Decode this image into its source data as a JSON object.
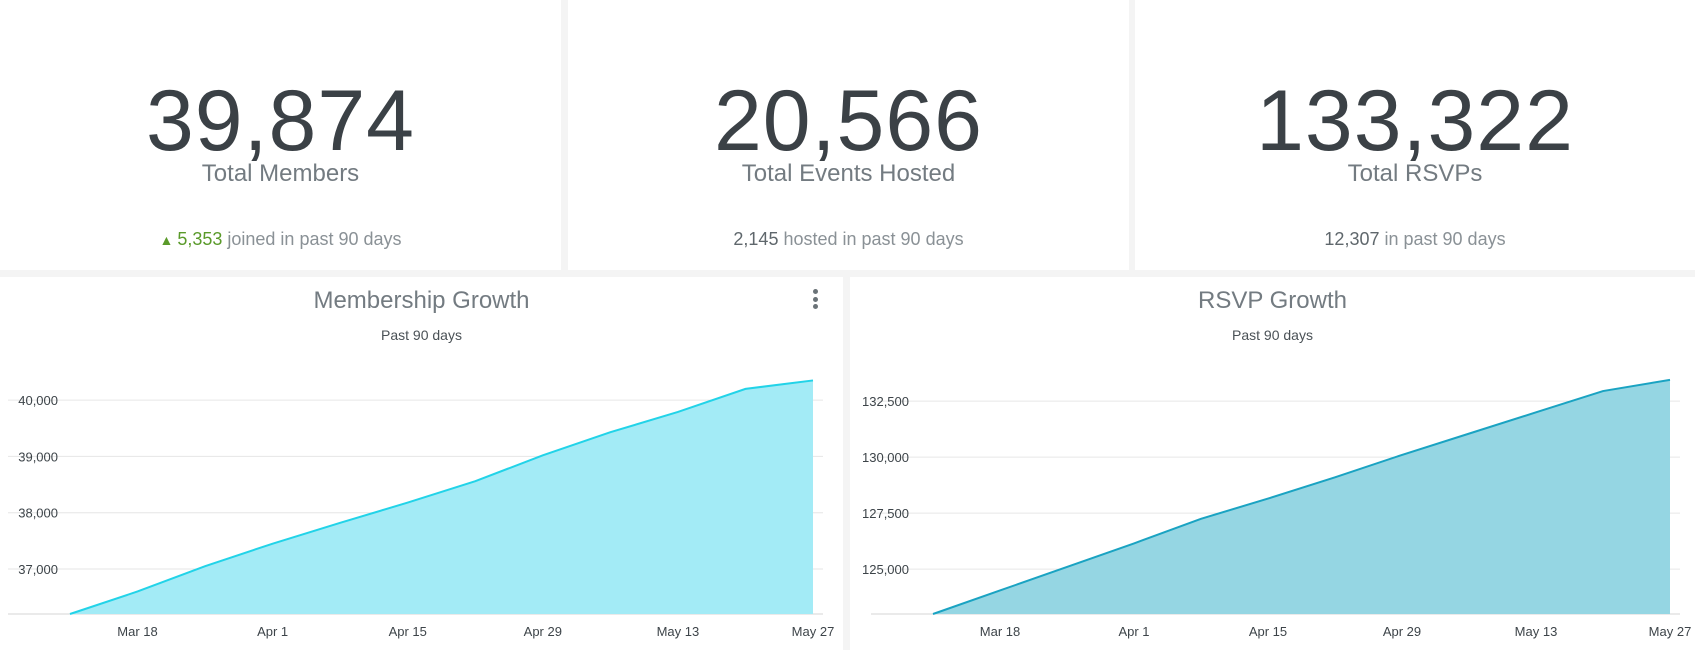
{
  "stats": [
    {
      "value": "39,874",
      "label": "Total Members",
      "delta": "5,353",
      "delta_text": "joined in past 90 days",
      "trend": "up"
    },
    {
      "value": "20,566",
      "label": "Total Events Hosted",
      "delta": "2,145",
      "delta_text": "hosted in past 90 days"
    },
    {
      "value": "133,322",
      "label": "Total RSVPs",
      "delta": "12,307",
      "delta_text": "in past 90 days"
    }
  ],
  "colors": {
    "membership_line": "#22d3e8",
    "membership_fill": "#a3ebf6",
    "rsvp_line": "#1aa3c2",
    "rsvp_fill": "#95d6e3",
    "grid": "#e6e6e6",
    "up_green": "#5a9a2a"
  },
  "chart_data": [
    {
      "type": "area",
      "title": "Membership Growth",
      "subtitle": "Past 90 days",
      "x": [
        "Mar 11",
        "Mar 18",
        "Mar 25",
        "Apr 1",
        "Apr 8",
        "Apr 15",
        "Apr 22",
        "Apr 29",
        "May 6",
        "May 13",
        "May 20",
        "May 27"
      ],
      "values": [
        36200,
        36600,
        37050,
        37450,
        37820,
        38180,
        38560,
        39020,
        39430,
        39790,
        40200,
        40350
      ],
      "xtick_labels": [
        "Mar 18",
        "Apr 1",
        "Apr 15",
        "Apr 29",
        "May 13",
        "May 27"
      ],
      "yticks": [
        37000,
        38000,
        39000,
        40000
      ],
      "ytick_labels": [
        "37,000",
        "38,000",
        "39,000",
        "40,000"
      ],
      "ylim": [
        36200,
        40500
      ],
      "has_menu": true
    },
    {
      "type": "area",
      "title": "RSVP Growth",
      "subtitle": "Past 90 days",
      "x": [
        "Mar 11",
        "Mar 18",
        "Mar 25",
        "Apr 1",
        "Apr 8",
        "Apr 15",
        "Apr 22",
        "Apr 29",
        "May 6",
        "May 13",
        "May 20",
        "May 27"
      ],
      "values": [
        123000,
        124050,
        125100,
        126150,
        127250,
        128150,
        129100,
        130100,
        131050,
        132000,
        132950,
        133450
      ],
      "xtick_labels": [
        "Mar 18",
        "Apr 1",
        "Apr 15",
        "Apr 29",
        "May 13",
        "May 27"
      ],
      "yticks": [
        125000,
        127500,
        130000,
        132500
      ],
      "ytick_labels": [
        "125,000",
        "127,500",
        "130,000",
        "132,500"
      ],
      "ylim": [
        123000,
        133800
      ],
      "has_menu": false
    }
  ]
}
